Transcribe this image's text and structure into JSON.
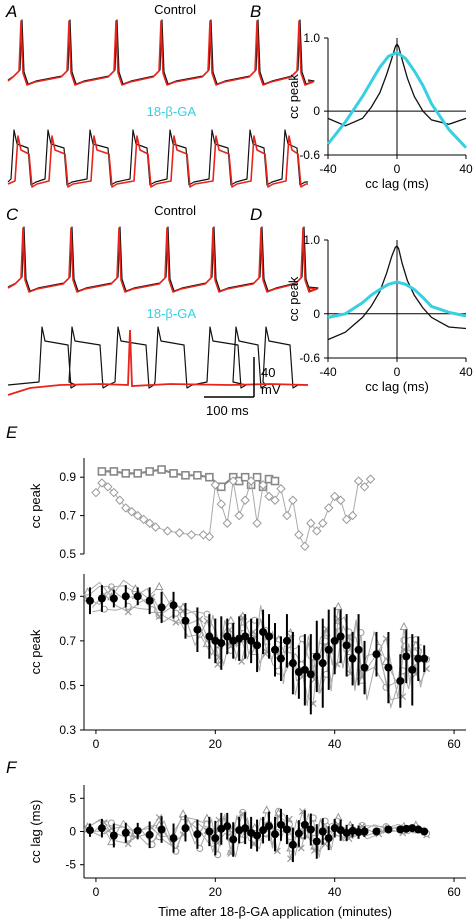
{
  "panels": {
    "A": "A",
    "B": "B",
    "C": "C",
    "D": "D",
    "E": "E",
    "F": "F"
  },
  "traces": {
    "A": {
      "top_label": "Control",
      "bottom_label": "18-β-GA"
    },
    "C": {
      "top_label": "Control",
      "bottom_label": "18-β-GA"
    },
    "scalebar": {
      "v_value": "40",
      "v_unit": "mV",
      "h_label": "100 ms"
    }
  },
  "colors": {
    "control_trace": "#111111",
    "paired_trace": "#e8251c",
    "ga_curve": "#37cfe2",
    "marker_gray": "#999999",
    "mean_marker": "#000000"
  },
  "chart_data": [
    {
      "panel": "B",
      "type": "line",
      "xlabel": "cc lag (ms)",
      "ylabel": "cc peak",
      "xlim": [
        -40,
        40
      ],
      "ylim": [
        -0.6,
        1.0
      ],
      "xticks": [
        "-40",
        "0",
        "40"
      ],
      "yticks": [
        "1.0",
        "0",
        "-0.6"
      ],
      "series": [
        {
          "color": "#111111",
          "x": [
            -40,
            -30,
            -20,
            -15,
            -10,
            -6,
            -3,
            -1,
            0,
            1,
            3,
            6,
            10,
            15,
            20,
            30,
            40
          ],
          "y": [
            -0.1,
            -0.2,
            -0.1,
            0.05,
            0.25,
            0.5,
            0.72,
            0.88,
            0.92,
            0.88,
            0.7,
            0.45,
            0.2,
            0.0,
            -0.12,
            -0.18,
            -0.1
          ]
        },
        {
          "color": "#37cfe2",
          "x": [
            -40,
            -30,
            -20,
            -15,
            -10,
            -5,
            0,
            5,
            10,
            15,
            20,
            30,
            40
          ],
          "y": [
            -0.45,
            -0.15,
            0.2,
            0.4,
            0.6,
            0.75,
            0.8,
            0.72,
            0.55,
            0.35,
            0.1,
            -0.25,
            -0.5
          ]
        }
      ]
    },
    {
      "panel": "D",
      "type": "line",
      "xlabel": "cc lag (ms)",
      "ylabel": "cc peak",
      "xlim": [
        -40,
        40
      ],
      "ylim": [
        -0.6,
        1.0
      ],
      "xticks": [
        "-40",
        "0",
        "40"
      ],
      "yticks": [
        "1.0",
        "0",
        "-0.6"
      ],
      "series": [
        {
          "color": "#111111",
          "x": [
            -40,
            -30,
            -20,
            -15,
            -10,
            -6,
            -3,
            -1,
            0,
            1,
            3,
            6,
            10,
            15,
            20,
            30,
            40
          ],
          "y": [
            -0.35,
            -0.25,
            -0.05,
            0.1,
            0.3,
            0.55,
            0.78,
            0.9,
            0.92,
            0.88,
            0.68,
            0.45,
            0.25,
            0.08,
            -0.05,
            -0.18,
            -0.2
          ]
        },
        {
          "color": "#37cfe2",
          "x": [
            -40,
            -30,
            -20,
            -15,
            -10,
            -5,
            0,
            5,
            10,
            15,
            20,
            30,
            40
          ],
          "y": [
            -0.05,
            0.0,
            0.15,
            0.25,
            0.33,
            0.4,
            0.43,
            0.4,
            0.33,
            0.22,
            0.1,
            0.02,
            -0.03
          ]
        }
      ]
    },
    {
      "panel": "E-top",
      "type": "scatter",
      "ylabel": "cc peak",
      "xlim": [
        -2,
        62
      ],
      "ylim": [
        0.5,
        1.0
      ],
      "yticks": [
        "0.9",
        "0.7",
        "0.5"
      ],
      "series": [
        {
          "marker": "square",
          "x": [
            1,
            3,
            5,
            7,
            9,
            11,
            13,
            15,
            17,
            19,
            21,
            23,
            24,
            25,
            26,
            27,
            28,
            29,
            30
          ],
          "y": [
            0.93,
            0.93,
            0.92,
            0.92,
            0.93,
            0.94,
            0.92,
            0.91,
            0.91,
            0.9,
            0.85,
            0.9,
            0.88,
            0.9,
            0.86,
            0.9,
            0.85,
            0.89,
            0.88
          ]
        },
        {
          "marker": "diamond",
          "x": [
            0,
            1,
            2,
            3,
            4,
            5,
            6,
            7,
            8,
            9,
            10,
            12,
            14,
            16,
            18,
            19,
            20,
            21,
            22,
            23,
            24,
            25,
            26,
            27,
            28,
            29,
            30,
            31,
            32,
            33,
            34,
            35,
            36,
            37,
            38,
            39,
            40,
            41,
            42,
            43,
            44,
            45,
            46
          ],
          "y": [
            0.82,
            0.87,
            0.85,
            0.82,
            0.78,
            0.74,
            0.72,
            0.7,
            0.68,
            0.66,
            0.64,
            0.62,
            0.61,
            0.6,
            0.6,
            0.59,
            0.86,
            0.76,
            0.66,
            0.88,
            0.7,
            0.78,
            0.88,
            0.66,
            0.86,
            0.8,
            0.78,
            0.84,
            0.7,
            0.78,
            0.6,
            0.54,
            0.66,
            0.62,
            0.66,
            0.74,
            0.8,
            0.78,
            0.68,
            0.7,
            0.88,
            0.85,
            0.89
          ]
        }
      ]
    },
    {
      "panel": "E-bottom",
      "type": "scatter",
      "ylabel": "cc peak",
      "xlim": [
        -2,
        62
      ],
      "ylim": [
        0.3,
        1.0
      ],
      "xticks": [
        "0",
        "20",
        "40",
        "60"
      ],
      "yticks": [
        "0.9",
        "0.7",
        "0.5",
        "0.3"
      ],
      "series": [
        {
          "name": "mean",
          "marker": "filled-circle",
          "x": [
            -1,
            1,
            3,
            5,
            7,
            9,
            11,
            13,
            15,
            17,
            19,
            20,
            21,
            22,
            23,
            24,
            25,
            26,
            27,
            28,
            29,
            30,
            31,
            32,
            33,
            34,
            35,
            36,
            37,
            38,
            39,
            40,
            41,
            42,
            43,
            44,
            45,
            47,
            49,
            51,
            52,
            53,
            54,
            55
          ],
          "y": [
            0.88,
            0.89,
            0.89,
            0.9,
            0.9,
            0.88,
            0.85,
            0.86,
            0.79,
            0.75,
            0.72,
            0.7,
            0.69,
            0.72,
            0.7,
            0.71,
            0.72,
            0.7,
            0.68,
            0.74,
            0.72,
            0.66,
            0.62,
            0.7,
            0.6,
            0.56,
            0.57,
            0.55,
            0.63,
            0.6,
            0.66,
            0.7,
            0.72,
            0.68,
            0.62,
            0.66,
            0.58,
            0.64,
            0.58,
            0.52,
            0.63,
            0.57,
            0.62,
            0.62
          ],
          "err": [
            0.06,
            0.06,
            0.04,
            0.05,
            0.04,
            0.06,
            0.07,
            0.06,
            0.08,
            0.1,
            0.1,
            0.1,
            0.12,
            0.08,
            0.08,
            0.1,
            0.1,
            0.1,
            0.12,
            0.1,
            0.1,
            0.12,
            0.1,
            0.12,
            0.14,
            0.12,
            0.16,
            0.18,
            0.16,
            0.2,
            0.18,
            0.15,
            0.12,
            0.14,
            0.12,
            0.16,
            0.12,
            0.1,
            0.16,
            0.12,
            0.12,
            0.16,
            0.1,
            0.06
          ]
        }
      ]
    },
    {
      "panel": "F",
      "type": "scatter",
      "ylabel": "cc lag (ms)",
      "xlabel": "Time after 18-β-GA application (minutes)",
      "xlim": [
        -2,
        62
      ],
      "ylim": [
        -7,
        7
      ],
      "xticks": [
        "0",
        "20",
        "40",
        "60"
      ],
      "yticks": [
        "5",
        "0",
        "-5"
      ],
      "series": [
        {
          "name": "mean",
          "marker": "filled-circle",
          "x": [
            -1,
            1,
            3,
            5,
            7,
            9,
            11,
            13,
            15,
            17,
            19,
            20,
            21,
            22,
            23,
            24,
            25,
            26,
            27,
            28,
            29,
            30,
            31,
            32,
            33,
            34,
            35,
            36,
            37,
            38,
            39,
            40,
            41,
            42,
            43,
            44,
            45,
            47,
            49,
            51,
            52,
            53,
            54,
            55
          ],
          "y": [
            0.2,
            0.5,
            -0.6,
            -0.2,
            0.1,
            -0.5,
            0.3,
            -1.0,
            0.5,
            -0.4,
            0.0,
            -1.0,
            0.4,
            0.8,
            -1.2,
            0.2,
            0.5,
            -0.2,
            -0.6,
            0.2,
            0.8,
            -0.4,
            1.0,
            0.3,
            -2.0,
            -0.3,
            1.0,
            0.3,
            -1.5,
            0.0,
            -1.0,
            0.5,
            0.2,
            -0.2,
            0.1,
            -0.1,
            0.0,
            0.0,
            0.3,
            0.3,
            0.4,
            0.5,
            0.3,
            0.0
          ],
          "err": [
            1.0,
            1.4,
            1.8,
            1.5,
            1.2,
            2.0,
            2.0,
            2.2,
            2.0,
            2.2,
            2.2,
            2.6,
            2.4,
            2.0,
            2.6,
            2.0,
            2.4,
            2.4,
            2.4,
            2.0,
            2.2,
            2.6,
            2.4,
            2.2,
            2.6,
            2.0,
            2.2,
            2.4,
            2.6,
            2.0,
            1.8,
            1.4,
            1.6,
            1.2,
            1.0,
            1.0,
            0.8,
            0.6,
            0.4,
            0.4,
            0.4,
            0.4,
            0.3,
            0.2
          ]
        }
      ]
    }
  ]
}
